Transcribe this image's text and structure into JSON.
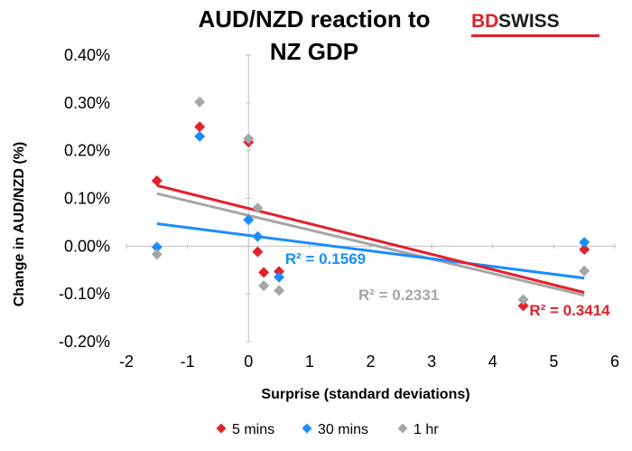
{
  "logo": {
    "part1": "BD",
    "part2": "SWISS"
  },
  "chart_data": {
    "type": "scatter",
    "title_lines": [
      "AUD/NZD reaction to",
      "NZ GDP"
    ],
    "xlabel": "Surprise (standard deviations)",
    "ylabel": "Change in AUD/NZD (%)",
    "xlim": [
      -2,
      6
    ],
    "ylim": [
      -0.2,
      0.4
    ],
    "x_ticks": [
      -2,
      -1,
      0,
      1,
      2,
      3,
      4,
      5,
      6
    ],
    "x_tick_labels": [
      "-2",
      "-1",
      "0",
      "1",
      "2",
      "3",
      "4",
      "5",
      "6"
    ],
    "y_ticks": [
      -0.2,
      -0.1,
      0.0,
      0.1,
      0.2,
      0.3,
      0.4
    ],
    "y_tick_labels": [
      "-0.20%",
      "-0.10%",
      "0.00%",
      "0.10%",
      "0.20%",
      "0.30%",
      "0.40%"
    ],
    "grid": false,
    "legend_position": "bottom",
    "series": [
      {
        "name": "5 mins",
        "color": "#e3202a",
        "points": [
          [
            -1.5,
            0.137
          ],
          [
            -0.8,
            0.25
          ],
          [
            0.0,
            0.218
          ],
          [
            0.15,
            -0.012
          ],
          [
            0.25,
            -0.055
          ],
          [
            0.5,
            -0.053
          ],
          [
            4.5,
            -0.125
          ],
          [
            5.5,
            -0.007
          ]
        ],
        "trend": {
          "x": [
            -1.5,
            5.5
          ],
          "y": [
            0.127,
            -0.097
          ]
        },
        "r2_label": "R² = 0.3414",
        "r2_at": [
          4.6,
          -0.145
        ]
      },
      {
        "name": "30 mins",
        "color": "#1a8cff",
        "points": [
          [
            -1.5,
            -0.002
          ],
          [
            -0.8,
            0.23
          ],
          [
            0.0,
            0.055
          ],
          [
            0.15,
            0.02
          ],
          [
            0.5,
            -0.065
          ],
          [
            5.5,
            0.008
          ]
        ],
        "trend": {
          "x": [
            -1.5,
            5.5
          ],
          "y": [
            0.047,
            -0.067
          ]
        },
        "r2_label": "R² = 0.1569",
        "r2_at": [
          0.6,
          -0.037
        ]
      },
      {
        "name": "1 hr",
        "color": "#a6a6a6",
        "points": [
          [
            -1.5,
            -0.017
          ],
          [
            -0.8,
            0.302
          ],
          [
            0.0,
            0.225
          ],
          [
            0.15,
            0.08
          ],
          [
            0.25,
            -0.083
          ],
          [
            0.5,
            -0.093
          ],
          [
            4.5,
            -0.112
          ],
          [
            5.5,
            -0.052
          ]
        ],
        "trend": {
          "x": [
            -1.5,
            5.5
          ],
          "y": [
            0.11,
            -0.103
          ]
        },
        "r2_label": "R² = 0.2331",
        "r2_at": [
          1.8,
          -0.113
        ]
      }
    ]
  }
}
